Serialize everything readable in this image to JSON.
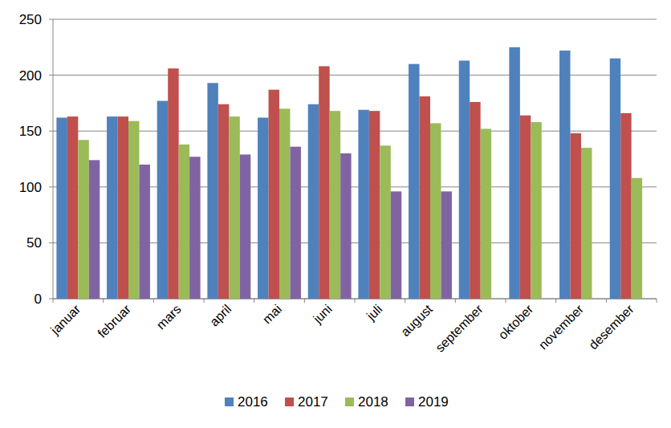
{
  "chart_data": {
    "type": "bar",
    "categories": [
      "januar",
      "februar",
      "mars",
      "april",
      "mai",
      "juni",
      "juli",
      "august",
      "september",
      "oktober",
      "november",
      "desember"
    ],
    "series": [
      {
        "name": "2016",
        "color": "#4f81bd",
        "values": [
          162,
          163,
          177,
          193,
          162,
          174,
          169,
          210,
          213,
          225,
          222,
          215
        ]
      },
      {
        "name": "2017",
        "color": "#c0504d",
        "values": [
          163,
          163,
          206,
          174,
          187,
          208,
          168,
          181,
          176,
          164,
          148,
          166
        ]
      },
      {
        "name": "2018",
        "color": "#9bbb59",
        "values": [
          142,
          159,
          138,
          163,
          170,
          168,
          137,
          157,
          152,
          158,
          135,
          108
        ]
      },
      {
        "name": "2019",
        "color": "#8064a2",
        "values": [
          124,
          120,
          127,
          129,
          136,
          130,
          96,
          96,
          null,
          null,
          null,
          null
        ]
      }
    ],
    "ylim": [
      0,
      250
    ],
    "yticks": [
      0,
      50,
      100,
      150,
      200,
      250
    ],
    "grid": true,
    "legend": "bottom"
  }
}
